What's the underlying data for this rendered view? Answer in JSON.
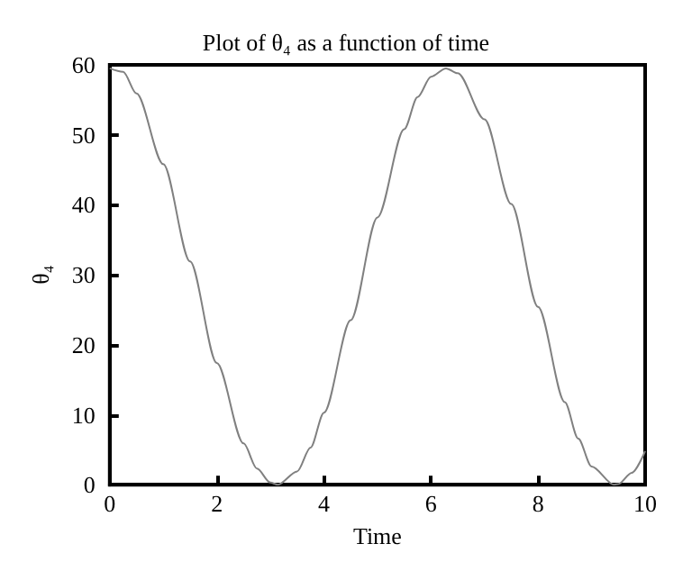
{
  "chart_data": {
    "type": "line",
    "title": "Plot of θ₄ as a function of time",
    "xlabel": "Time",
    "ylabel": "θ₄",
    "x": [
      0,
      0.25,
      0.5,
      1,
      1.5,
      2,
      2.5,
      2.75,
      3,
      3.14,
      3.5,
      3.75,
      4,
      4.5,
      5,
      5.5,
      5.75,
      6,
      6.28,
      6.5,
      7,
      7.5,
      8,
      8.5,
      8.75,
      9,
      9.42,
      9.5,
      9.75,
      10
    ],
    "series": [
      {
        "color": "#808080",
        "values": [
          59.5,
          59.0,
          55.9,
          45.8,
          31.9,
          17.4,
          5.9,
          2.3,
          0.3,
          0,
          1.9,
          5.3,
          10.3,
          23.5,
          38.2,
          50.8,
          55.4,
          58.3,
          59.5,
          58.8,
          52.2,
          40.1,
          25.4,
          11.8,
          6.6,
          2.6,
          0,
          0.1,
          1.7,
          4.8
        ]
      }
    ],
    "xlim": [
      0,
      10
    ],
    "xticks": [
      0,
      2,
      4,
      6,
      8,
      10
    ],
    "ylim": [
      0,
      60
    ],
    "yticks": [
      0,
      10,
      20,
      30,
      40,
      50,
      60
    ],
    "marker": "none",
    "line_style": "solid"
  }
}
